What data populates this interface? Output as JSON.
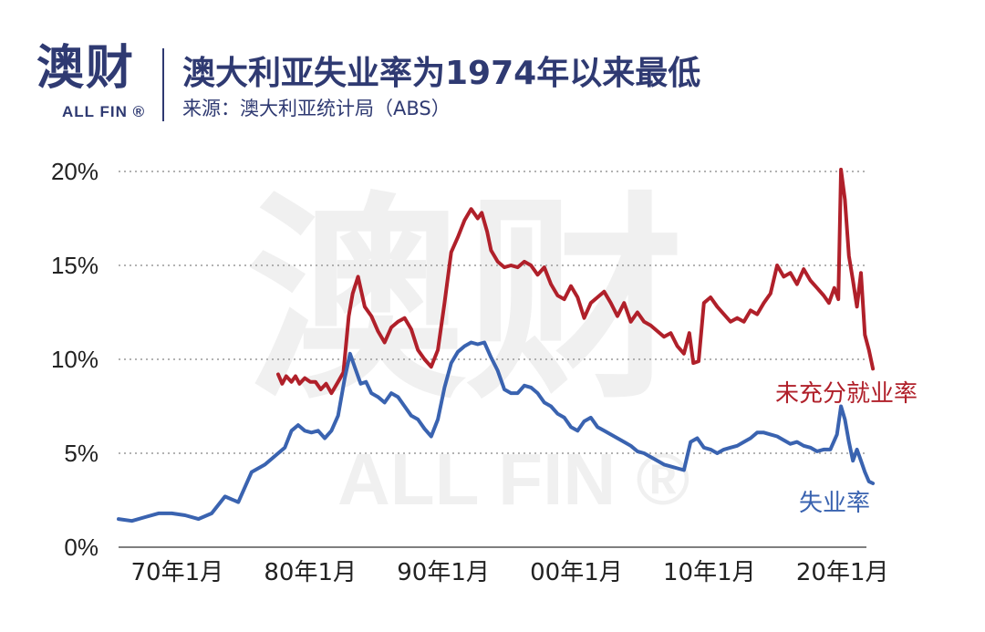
{
  "header": {
    "logo_main": "澳财",
    "logo_sub": "ALL FIN ®",
    "title": "澳大利亚失业率为1974年以来最低",
    "source": "来源：澳大利亚统计局（ABS）"
  },
  "watermark": {
    "main": "澳财",
    "sub": "ALL FIN ®"
  },
  "colors": {
    "brand": "#2f3a72",
    "underemployment": "#b0202a",
    "unemployment": "#3a63b0",
    "grid": "#999999"
  },
  "chart_data": {
    "type": "line",
    "title": "澳大利亚失业率为1974年以来最低",
    "ylim": [
      0,
      20
    ],
    "y_ticks": [
      "0%",
      "5%",
      "10%",
      "15%",
      "20%"
    ],
    "y_tick_values": [
      0,
      5,
      10,
      15,
      20
    ],
    "xlim": [
      1966,
      2022.9
    ],
    "x_ticks": [
      "70年1月",
      "80年1月",
      "90年1月",
      "00年1月",
      "10年1月",
      "20年1月"
    ],
    "x_tick_values": [
      1970,
      1980,
      1990,
      2000,
      2010,
      2020
    ],
    "grid": "horizontal-dotted",
    "series": [
      {
        "name": "未充分就业率",
        "x": [
          1978.0,
          1978.3,
          1978.6,
          1979.0,
          1979.3,
          1979.6,
          1980.0,
          1980.4,
          1980.8,
          1981.2,
          1981.6,
          1982.0,
          1982.5,
          1982.9,
          1983.3,
          1983.6,
          1984.0,
          1984.5,
          1985.0,
          1985.5,
          1986.0,
          1986.5,
          1987.0,
          1987.5,
          1988.0,
          1988.5,
          1989.0,
          1989.5,
          1990.0,
          1990.5,
          1991.0,
          1991.5,
          1992.0,
          1992.5,
          1993.0,
          1993.3,
          1993.7,
          1994.0,
          1994.5,
          1995.0,
          1995.5,
          1996.0,
          1996.5,
          1997.0,
          1997.5,
          1998.0,
          1998.5,
          1999.0,
          1999.5,
          2000.0,
          2000.5,
          2001.0,
          2001.5,
          2002.0,
          2002.5,
          2003.0,
          2003.5,
          2004.0,
          2004.5,
          2005.0,
          2005.5,
          2006.0,
          2006.5,
          2007.0,
          2007.5,
          2008.0,
          2008.5,
          2008.9,
          2009.2,
          2009.6,
          2010.0,
          2010.5,
          2011.0,
          2011.5,
          2012.0,
          2012.5,
          2013.0,
          2013.5,
          2014.0,
          2014.5,
          2015.0,
          2015.5,
          2016.0,
          2016.5,
          2017.0,
          2017.5,
          2018.0,
          2018.5,
          2019.0,
          2019.4,
          2019.8,
          2020.1,
          2020.3,
          2020.6,
          2020.9,
          2021.2,
          2021.5,
          2021.8,
          2022.1,
          2022.4,
          2022.7
        ],
        "values": [
          9.2,
          8.7,
          9.1,
          8.8,
          9.1,
          8.7,
          9.0,
          8.8,
          8.8,
          8.4,
          8.7,
          8.2,
          8.8,
          9.3,
          12.3,
          13.5,
          14.4,
          12.8,
          12.3,
          11.5,
          10.9,
          11.7,
          12.0,
          12.2,
          11.6,
          10.5,
          10.0,
          9.6,
          10.5,
          13.0,
          15.7,
          16.5,
          17.4,
          18.0,
          17.5,
          17.8,
          16.8,
          15.8,
          15.2,
          14.9,
          15.0,
          14.9,
          15.2,
          15.0,
          14.5,
          14.9,
          14.0,
          13.4,
          13.2,
          13.9,
          13.3,
          12.2,
          13.0,
          13.3,
          13.6,
          13.0,
          12.3,
          13.0,
          12.0,
          12.5,
          12.0,
          11.8,
          11.5,
          11.2,
          11.4,
          10.7,
          10.3,
          11.4,
          9.8,
          9.9,
          13.0,
          13.3,
          12.8,
          12.4,
          12.0,
          12.2,
          12.0,
          12.6,
          12.4,
          13.0,
          13.5,
          15.0,
          14.4,
          14.6,
          14.0,
          14.8,
          14.2,
          13.8,
          13.4,
          13.0,
          13.8,
          13.2,
          20.1,
          18.5,
          15.5,
          14.2,
          12.8,
          14.6,
          11.3,
          10.5,
          9.5
        ]
      },
      {
        "name": "失业率",
        "x": [
          1966.0,
          1967.0,
          1968.0,
          1969.0,
          1970.0,
          1971.0,
          1972.0,
          1973.0,
          1974.0,
          1975.0,
          1976.0,
          1977.0,
          1978.0,
          1978.5,
          1979.0,
          1979.5,
          1980.0,
          1980.5,
          1981.0,
          1981.5,
          1982.0,
          1982.5,
          1983.0,
          1983.4,
          1983.8,
          1984.2,
          1984.6,
          1985.0,
          1985.5,
          1986.0,
          1986.5,
          1987.0,
          1987.5,
          1988.0,
          1988.5,
          1989.0,
          1989.5,
          1990.0,
          1990.5,
          1991.0,
          1991.5,
          1992.0,
          1992.5,
          1993.0,
          1993.5,
          1994.0,
          1994.5,
          1995.0,
          1995.5,
          1996.0,
          1996.5,
          1997.0,
          1997.5,
          1998.0,
          1998.5,
          1999.0,
          1999.5,
          2000.0,
          2000.5,
          2001.0,
          2001.5,
          2002.0,
          2002.5,
          2003.0,
          2003.5,
          2004.0,
          2004.5,
          2005.0,
          2005.5,
          2006.0,
          2006.5,
          2007.0,
          2007.5,
          2008.0,
          2008.5,
          2009.0,
          2009.5,
          2010.0,
          2010.5,
          2011.0,
          2011.5,
          2012.0,
          2012.5,
          2013.0,
          2013.5,
          2014.0,
          2014.5,
          2015.0,
          2015.5,
          2016.0,
          2016.5,
          2017.0,
          2017.5,
          2018.0,
          2018.5,
          2019.0,
          2019.5,
          2020.0,
          2020.3,
          2020.6,
          2020.9,
          2021.2,
          2021.5,
          2021.8,
          2022.1,
          2022.4,
          2022.7
        ],
        "values": [
          1.5,
          1.4,
          1.6,
          1.8,
          1.8,
          1.7,
          1.5,
          1.8,
          2.7,
          2.4,
          4.0,
          4.4,
          5.0,
          5.3,
          6.2,
          6.5,
          6.2,
          6.1,
          6.2,
          5.8,
          6.2,
          7.0,
          9.0,
          10.3,
          9.5,
          8.7,
          8.8,
          8.2,
          8.0,
          7.7,
          8.2,
          8.0,
          7.5,
          7.0,
          6.8,
          6.3,
          5.9,
          6.8,
          8.5,
          9.8,
          10.4,
          10.7,
          10.9,
          10.8,
          10.9,
          10.1,
          9.4,
          8.4,
          8.2,
          8.2,
          8.6,
          8.5,
          8.2,
          7.7,
          7.5,
          7.1,
          6.9,
          6.4,
          6.2,
          6.7,
          6.9,
          6.4,
          6.2,
          6.0,
          5.8,
          5.6,
          5.4,
          5.1,
          5.0,
          4.8,
          4.6,
          4.4,
          4.3,
          4.2,
          4.1,
          5.6,
          5.8,
          5.3,
          5.2,
          5.0,
          5.2,
          5.3,
          5.4,
          5.6,
          5.8,
          6.1,
          6.1,
          6.0,
          5.9,
          5.7,
          5.5,
          5.6,
          5.4,
          5.3,
          5.1,
          5.2,
          5.2,
          6.0,
          7.5,
          6.8,
          5.6,
          4.6,
          5.2,
          4.6,
          4.0,
          3.5,
          3.4
        ]
      }
    ]
  }
}
